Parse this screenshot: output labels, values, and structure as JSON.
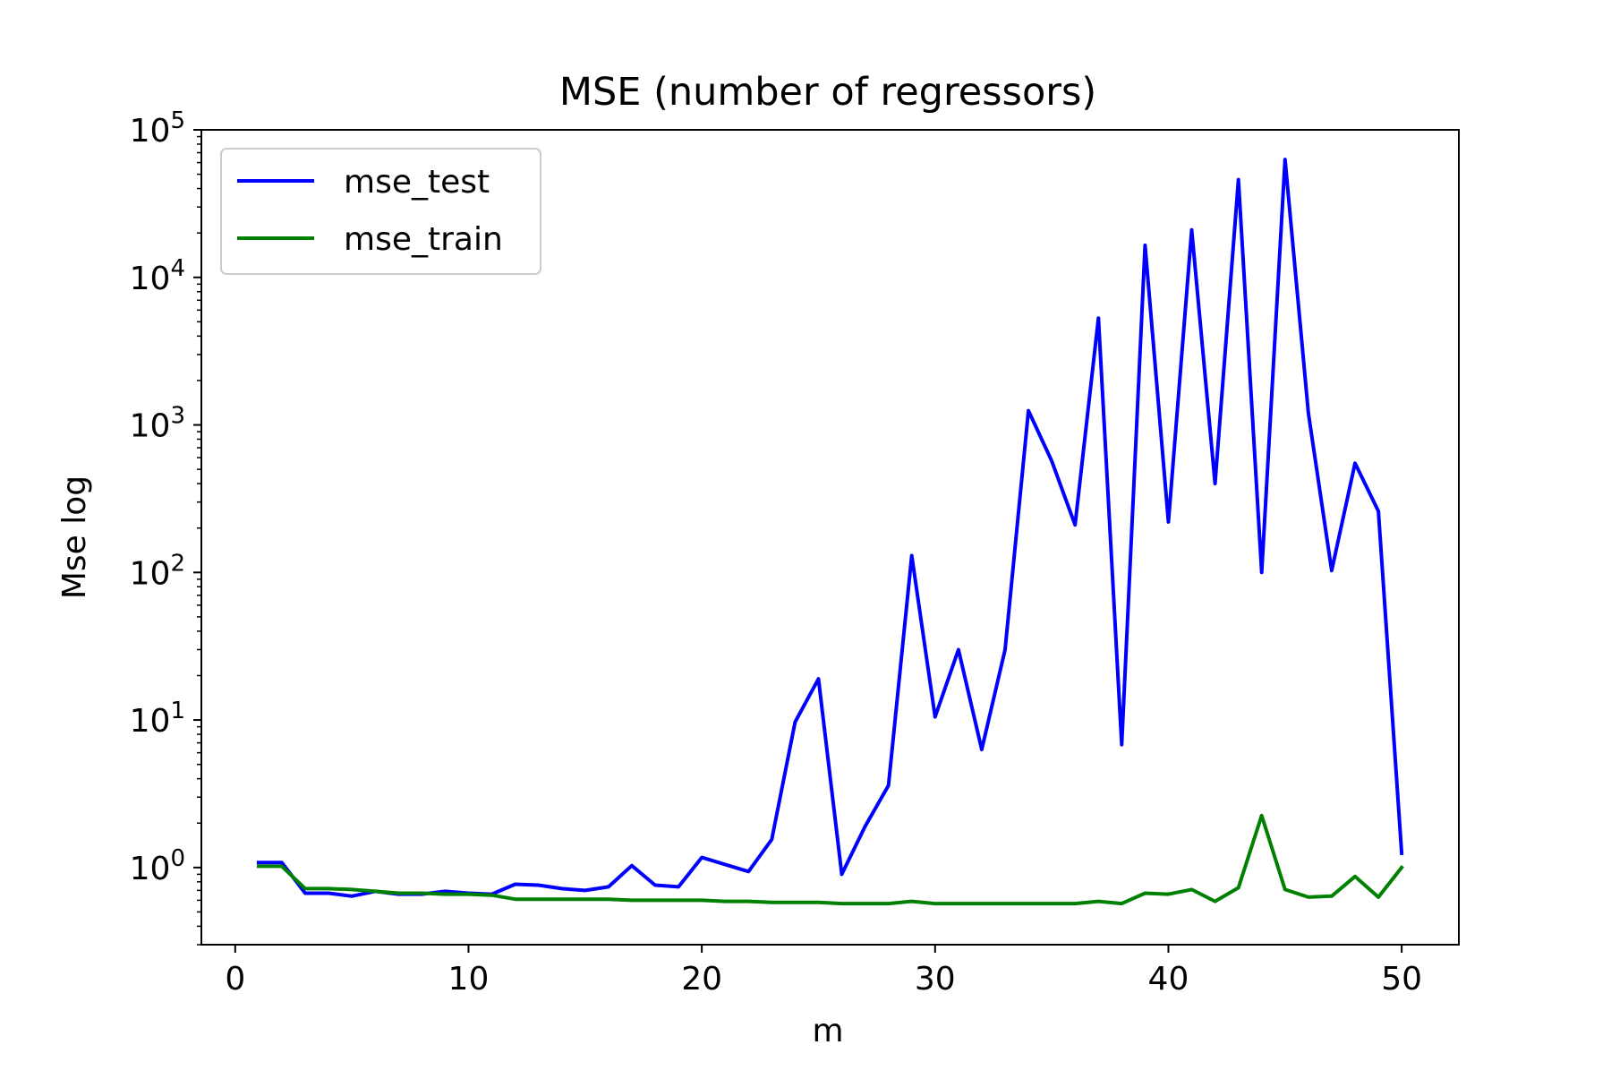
{
  "chart_data": {
    "type": "line",
    "title": "MSE (number of regressors)",
    "xlabel": "m",
    "ylabel": "Mse log",
    "yscale": "log",
    "xlim": [
      -1.45,
      52.45
    ],
    "ylim": [
      0.3,
      100000
    ],
    "x_ticks": [
      0,
      10,
      20,
      30,
      40,
      50
    ],
    "y_ticks": [
      {
        "value": 1,
        "base": "10",
        "exp": "0"
      },
      {
        "value": 10,
        "base": "10",
        "exp": "1"
      },
      {
        "value": 100,
        "base": "10",
        "exp": "2"
      },
      {
        "value": 1000,
        "base": "10",
        "exp": "3"
      },
      {
        "value": 10000,
        "base": "10",
        "exp": "4"
      },
      {
        "value": 100000,
        "base": "10",
        "exp": "5"
      }
    ],
    "grid": false,
    "legend_position": "upper-left",
    "x": [
      1,
      2,
      3,
      4,
      5,
      6,
      7,
      8,
      9,
      10,
      11,
      12,
      13,
      14,
      15,
      16,
      17,
      18,
      19,
      20,
      21,
      22,
      23,
      24,
      25,
      26,
      27,
      28,
      29,
      30,
      31,
      32,
      33,
      34,
      35,
      36,
      37,
      38,
      39,
      40,
      41,
      42,
      43,
      44,
      45,
      46,
      47,
      48,
      49,
      50
    ],
    "series": [
      {
        "name": "mse_test",
        "color": "#0000ff",
        "values": [
          1.08,
          1.08,
          0.67,
          0.67,
          0.64,
          0.69,
          0.66,
          0.66,
          0.69,
          0.67,
          0.66,
          0.77,
          0.76,
          0.72,
          0.7,
          0.74,
          1.03,
          0.76,
          0.74,
          1.17,
          1.05,
          0.94,
          1.55,
          9.7,
          19,
          0.9,
          1.9,
          3.6,
          130,
          10.5,
          30,
          6.3,
          30,
          1250,
          570,
          210,
          5300,
          6.8,
          16500,
          220,
          21000,
          400,
          46000,
          100,
          63000,
          1200,
          103,
          550,
          260,
          1.25
        ]
      },
      {
        "name": "mse_train",
        "color": "#008000",
        "values": [
          1.02,
          1.02,
          0.72,
          0.72,
          0.71,
          0.69,
          0.67,
          0.67,
          0.66,
          0.66,
          0.65,
          0.61,
          0.61,
          0.61,
          0.61,
          0.61,
          0.6,
          0.6,
          0.6,
          0.6,
          0.59,
          0.59,
          0.58,
          0.58,
          0.58,
          0.57,
          0.57,
          0.57,
          0.59,
          0.57,
          0.57,
          0.57,
          0.57,
          0.57,
          0.57,
          0.57,
          0.59,
          0.57,
          0.67,
          0.66,
          0.71,
          0.59,
          0.73,
          2.25,
          0.71,
          0.63,
          0.64,
          0.87,
          0.63,
          1.0
        ]
      }
    ]
  }
}
